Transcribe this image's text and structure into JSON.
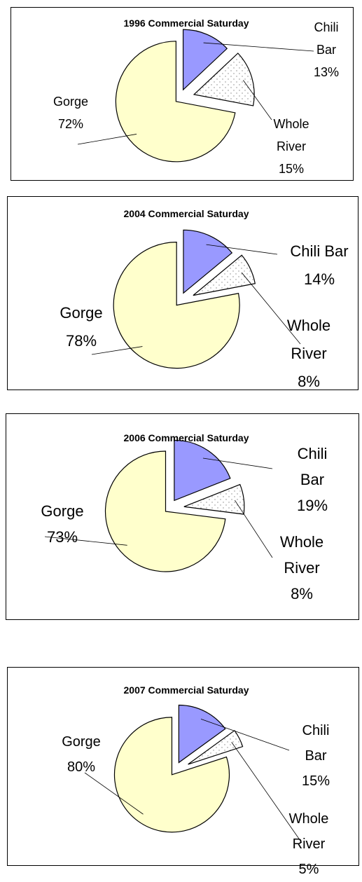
{
  "chart_data": [
    {
      "type": "pie",
      "title": "1996 Commercial Saturday",
      "categories": [
        "Chili Bar",
        "Whole River",
        "Gorge"
      ],
      "values": [
        13,
        15,
        72
      ],
      "value_labels": [
        "13%",
        "15%",
        "72%"
      ],
      "colors": [
        "#9999ff",
        "#ffffff",
        "#ffffcc"
      ]
    },
    {
      "type": "pie",
      "title": "2004 Commercial Saturday",
      "categories": [
        "Chili Bar",
        "Whole River",
        "Gorge"
      ],
      "values": [
        14,
        8,
        78
      ],
      "value_labels": [
        "14%",
        "8%",
        "78%"
      ],
      "colors": [
        "#9999ff",
        "#ffffff",
        "#ffffcc"
      ]
    },
    {
      "type": "pie",
      "title": "2006 Commercial Saturday",
      "categories": [
        "Chili Bar",
        "Whole River",
        "Gorge"
      ],
      "values": [
        19,
        8,
        73
      ],
      "value_labels": [
        "19%",
        "8%",
        "73%"
      ],
      "colors": [
        "#9999ff",
        "#ffffff",
        "#ffffcc"
      ]
    },
    {
      "type": "pie",
      "title": "2007 Commercial Saturday",
      "categories": [
        "Chili Bar",
        "Whole River",
        "Gorge"
      ],
      "values": [
        15,
        5,
        80
      ],
      "value_labels": [
        "15%",
        "5%",
        "80%"
      ],
      "colors": [
        "#9999ff",
        "#ffffff",
        "#ffffcc"
      ]
    }
  ]
}
